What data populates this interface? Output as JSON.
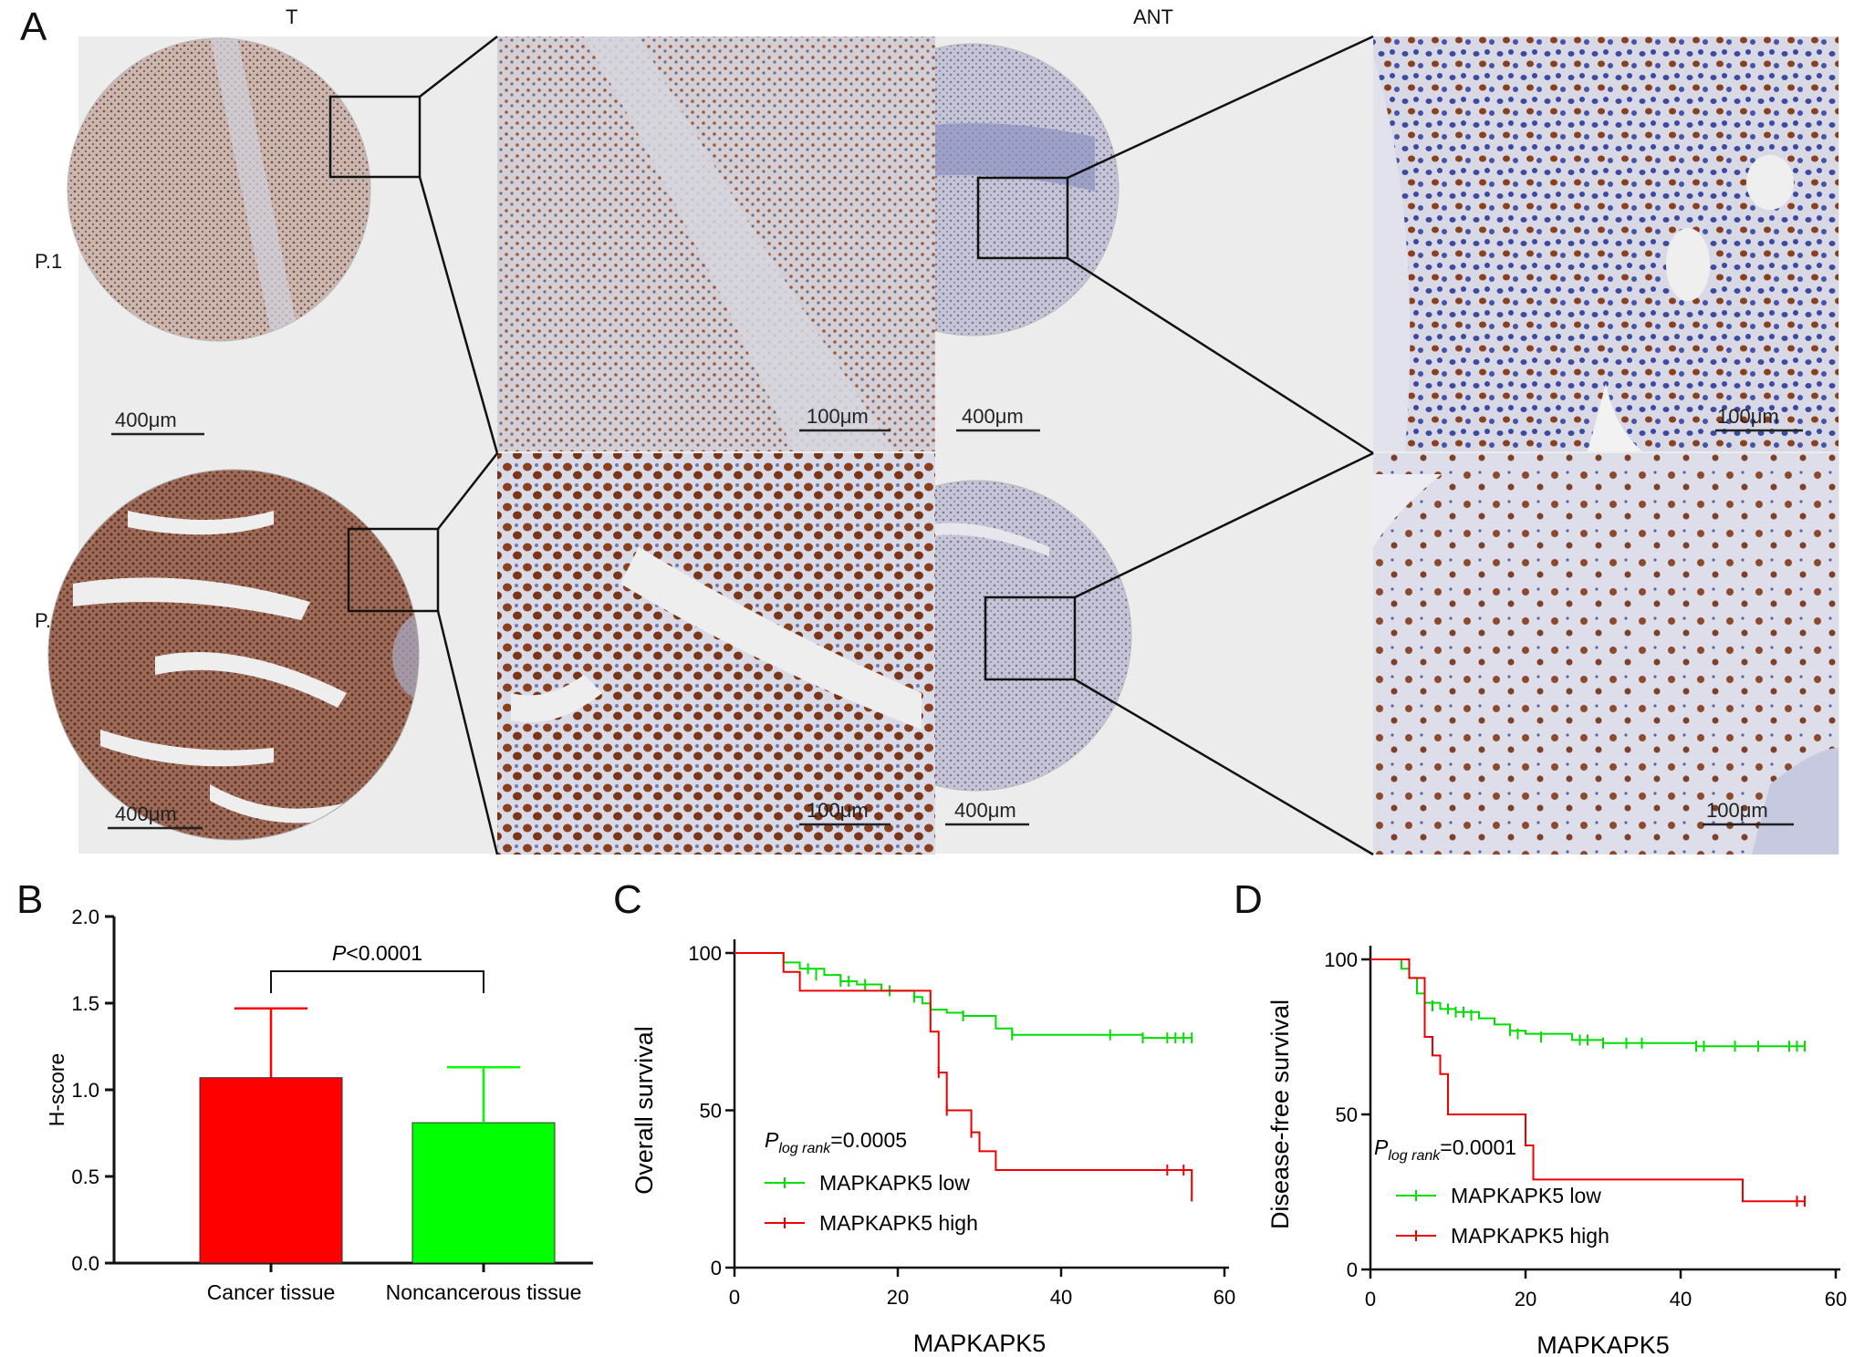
{
  "panels": {
    "A": "A",
    "B": "B",
    "C": "C",
    "D": "D"
  },
  "panel_a": {
    "col_labels": [
      "T",
      "ANT"
    ],
    "row_labels": [
      "P.1",
      "P.2"
    ],
    "scale_overview": "400μm",
    "scale_zoom": "100μm",
    "colors": {
      "brown": "#8a4a2e",
      "hematoxylin": "#9a9cc8",
      "background": "#efefef",
      "lightbg": "#dcdde8"
    }
  },
  "chart_data": [
    {
      "type": "bar",
      "panel": "B",
      "categories": [
        "Cancer tissue",
        "Noncancerous tissue"
      ],
      "values": [
        1.07,
        0.81
      ],
      "errors": [
        0.4,
        0.32
      ],
      "colors": [
        "#ff0000",
        "#00ff00"
      ],
      "ylabel": "H-score",
      "xlabel": "",
      "ylim": [
        0,
        2.0
      ],
      "yticks": [
        "0.0",
        "0.5",
        "1.0",
        "1.5",
        "2.0"
      ],
      "annotation_p": "P",
      "annotation_rest": "<0.0001"
    },
    {
      "type": "line",
      "panel": "C",
      "xlabel": "MAPKAPK5",
      "ylabel": "Overall survival",
      "xlim": [
        0,
        60
      ],
      "ylim": [
        0,
        100
      ],
      "xticks": [
        "0",
        "20",
        "40",
        "60"
      ],
      "yticks": [
        "0",
        "50",
        "100"
      ],
      "p_main": "P",
      "p_sub": "log rank",
      "p_val": "=0.0005",
      "series": [
        {
          "name": "MAPKAPK5 low",
          "color": "#00dd00",
          "x": [
            0,
            5,
            6,
            8,
            11,
            13,
            15,
            18,
            22,
            23,
            24,
            26,
            28,
            31,
            32,
            34,
            38,
            40,
            42,
            46,
            47,
            50,
            56
          ],
          "y": [
            100,
            100,
            97,
            95,
            93,
            91,
            90,
            88,
            86,
            84,
            82,
            81,
            80,
            80,
            76,
            74,
            74,
            74,
            74,
            74,
            74,
            73,
            73
          ],
          "censor_x": [
            9,
            10,
            13,
            14,
            16,
            19,
            22,
            28,
            34,
            46,
            50,
            53,
            54,
            55,
            56
          ]
        },
        {
          "name": "MAPKAPK5 high",
          "color": "#ee0000",
          "x": [
            0,
            5,
            6,
            8,
            22,
            24,
            25,
            26,
            28,
            29,
            30,
            32,
            56
          ],
          "y": [
            100,
            100,
            94,
            88,
            88,
            75,
            62,
            50,
            50,
            43,
            37,
            31,
            21
          ],
          "censor_x": [
            25,
            26,
            29,
            53,
            55
          ]
        }
      ],
      "censor_low_y": [
        95,
        93,
        91,
        91,
        90,
        88,
        86,
        80,
        74,
        74,
        73,
        73,
        73,
        73,
        73
      ],
      "censor_high_y": [
        62,
        50,
        43,
        31,
        31
      ]
    },
    {
      "type": "line",
      "panel": "D",
      "xlabel": "MAPKAPK5",
      "ylabel": "Disease-free survival",
      "xlim": [
        0,
        60
      ],
      "ylim": [
        0,
        100
      ],
      "xticks": [
        "0",
        "20",
        "40",
        "60"
      ],
      "yticks": [
        "0",
        "50",
        "100"
      ],
      "p_main": "P",
      "p_sub": "log rank",
      "p_val": "=0.0001",
      "series": [
        {
          "name": "MAPKAPK5 low",
          "color": "#00dd00",
          "x": [
            0,
            3,
            4,
            5,
            6,
            7,
            9,
            11,
            14,
            16,
            18,
            20,
            26,
            28,
            30,
            42,
            56
          ],
          "y": [
            100,
            100,
            97,
            94,
            89,
            86,
            84,
            83,
            81,
            79,
            77,
            76,
            74,
            74,
            73,
            72,
            72
          ],
          "censor_x": [
            8,
            10,
            11,
            12,
            13,
            18,
            19,
            22,
            27,
            28,
            30,
            33,
            35,
            42,
            43,
            47,
            50,
            54,
            55,
            56
          ]
        },
        {
          "name": "MAPKAPK5 high",
          "color": "#ee0000",
          "x": [
            0,
            4,
            5,
            7,
            8,
            9,
            10,
            19,
            20,
            21,
            48,
            56
          ],
          "y": [
            100,
            100,
            94,
            75,
            69,
            63,
            50,
            50,
            40,
            29,
            22,
            22
          ],
          "censor_x": [
            55,
            56
          ]
        }
      ],
      "censor_low_y": [
        85,
        84,
        83,
        83,
        82,
        77,
        76,
        75,
        74,
        74,
        73,
        73,
        73,
        72,
        72,
        72,
        72,
        72,
        72,
        72
      ],
      "censor_high_y": [
        22,
        22
      ]
    }
  ]
}
